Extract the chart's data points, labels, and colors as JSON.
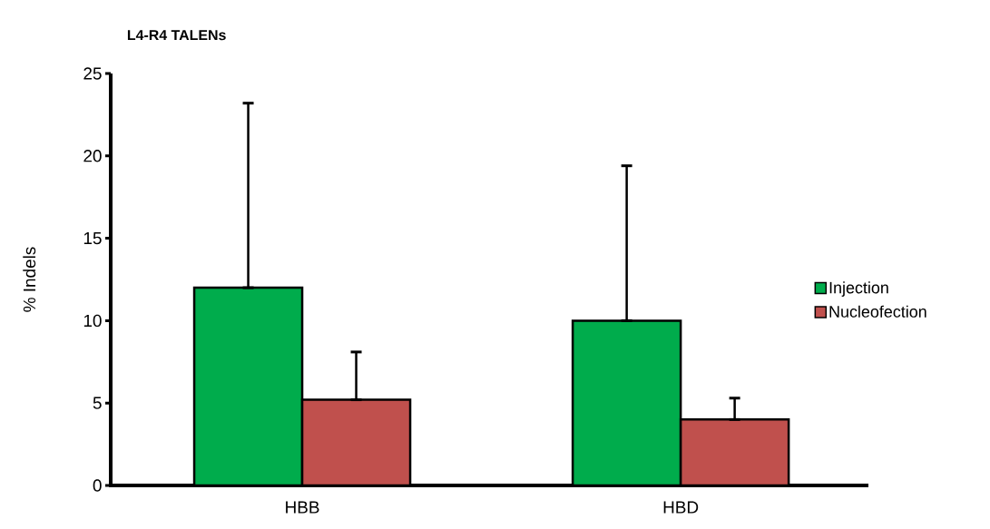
{
  "chart_data": {
    "type": "bar",
    "title": "L4-R4 TALENs",
    "ylabel": "% Indels",
    "categories": [
      "HBB",
      "HBD"
    ],
    "series": [
      {
        "name": "Injection",
        "color": "#00ac4c",
        "values": [
          12,
          10
        ],
        "errors": [
          [
            12,
            23.2
          ],
          [
            10,
            19.4
          ]
        ]
      },
      {
        "name": "Nucleofection",
        "color": "#c0504d",
        "values": [
          5.2,
          4.0
        ],
        "errors": [
          [
            5.2,
            8.1
          ],
          [
            4.0,
            5.3
          ]
        ]
      }
    ],
    "ylim": [
      0,
      25
    ],
    "yticks": [
      0,
      5,
      10,
      15,
      20,
      25
    ],
    "grid": false,
    "legend": "right"
  }
}
